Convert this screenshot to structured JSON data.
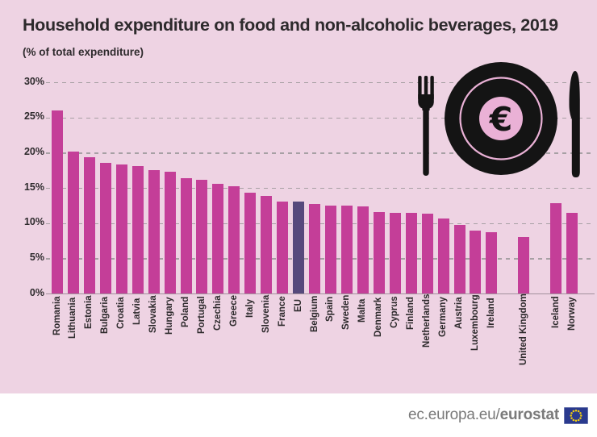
{
  "title": "Household expenditure on food and non-alcoholic beverages, 2019",
  "subtitle": "(% of total expenditure)",
  "footer": {
    "site_prefix": "ec.europa.eu/",
    "site_bold": "eurostat"
  },
  "icons": {
    "dinner_icon": "plate-with-euro-fork-knife",
    "euro_symbol": "€",
    "flag": "eu-flag"
  },
  "colors": {
    "background": "#eed3e3",
    "bar": "#c43e98",
    "eu_bar": "#56497c",
    "grid": "#8f8f8f",
    "baseline": "#a4929e",
    "text": "#2d2a2c",
    "footer_text": "#7a7a7a",
    "footer_bg": "#ffffff",
    "plate": "#141414",
    "plate_pink": "#eab1d6",
    "flag_blue": "#2a3a8e",
    "flag_stars": "#f3cf0e"
  },
  "chart_data": {
    "type": "bar",
    "title": "Household expenditure on food and non-alcoholic beverages, 2019",
    "subtitle": "(% of total expenditure)",
    "xlabel": "",
    "ylabel": "% of total expenditure",
    "ylim": [
      0,
      30
    ],
    "grid": "dashed-horizontal",
    "legend": "none",
    "yticks": [
      "30%",
      "25%",
      "20%",
      "15%",
      "10%",
      "5%",
      "0%"
    ],
    "bars": [
      {
        "label": "Romania",
        "value": 26.0
      },
      {
        "label": "Lithuania",
        "value": 20.2
      },
      {
        "label": "Estonia",
        "value": 19.4
      },
      {
        "label": "Bulgaria",
        "value": 18.5
      },
      {
        "label": "Croatia",
        "value": 18.3
      },
      {
        "label": "Latvia",
        "value": 18.1
      },
      {
        "label": "Slovakia",
        "value": 17.5
      },
      {
        "label": "Hungary",
        "value": 17.3
      },
      {
        "label": "Poland",
        "value": 16.4
      },
      {
        "label": "Portugal",
        "value": 16.1
      },
      {
        "label": "Czechia",
        "value": 15.6
      },
      {
        "label": "Greece",
        "value": 15.2
      },
      {
        "label": "Italy",
        "value": 14.3
      },
      {
        "label": "Slovenia",
        "value": 13.9
      },
      {
        "label": "France",
        "value": 13.1
      },
      {
        "label": "EU",
        "value": 13.0,
        "highlight": true
      },
      {
        "label": "Belgium",
        "value": 12.7
      },
      {
        "label": "Spain",
        "value": 12.5
      },
      {
        "label": "Sweden",
        "value": 12.5
      },
      {
        "label": "Malta",
        "value": 12.4
      },
      {
        "label": "Denmark",
        "value": 11.6
      },
      {
        "label": "Cyprus",
        "value": 11.4
      },
      {
        "label": "Finland",
        "value": 11.4
      },
      {
        "label": "Netherlands",
        "value": 11.3
      },
      {
        "label": "Germany",
        "value": 10.7
      },
      {
        "label": "Austria",
        "value": 9.7
      },
      {
        "label": "Luxembourg",
        "value": 8.9
      },
      {
        "label": "Ireland",
        "value": 8.7
      },
      {
        "label": "",
        "value": null,
        "spacer": true
      },
      {
        "label": "United Kingdom",
        "value": 8.0
      },
      {
        "label": "",
        "value": null,
        "spacer": true
      },
      {
        "label": "Iceland",
        "value": 12.8
      },
      {
        "label": "Norway",
        "value": 11.5
      }
    ]
  }
}
